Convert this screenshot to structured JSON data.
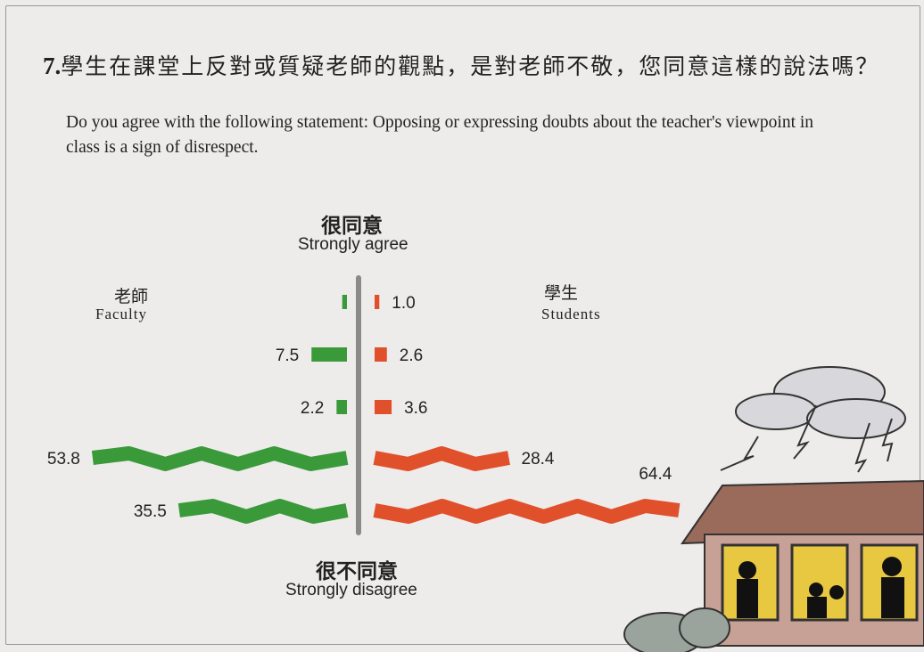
{
  "question": {
    "number": "7.",
    "zh": "學生在課堂上反對或質疑老師的觀點，是對老師不敬，您同意這樣的說法嗎？",
    "en": "Do you agree with the following statement: Opposing or expressing doubts about the teacher's viewpoint in class is a sign of disrespect."
  },
  "chart_data": {
    "type": "bar",
    "orientation": "horizontal diverging",
    "axis_top": {
      "zh": "很同意",
      "en": "Strongly agree"
    },
    "axis_bottom": {
      "zh": "很不同意",
      "en": "Strongly disagree"
    },
    "series": [
      {
        "name": "Faculty",
        "name_zh": "老師",
        "color": "#3a9a3a",
        "values": [
          1.0,
          7.5,
          2.2,
          53.8,
          35.5
        ],
        "labels": [
          "",
          "7.5",
          "2.2",
          "53.8",
          "35.5"
        ]
      },
      {
        "name": "Students",
        "name_zh": "學生",
        "color": "#e0502a",
        "values": [
          1.0,
          2.6,
          3.6,
          28.4,
          64.4
        ],
        "labels": [
          "1.0",
          "2.6",
          "3.6",
          "28.4",
          "64.4"
        ]
      }
    ],
    "unit": "%",
    "axis_color": "#8a8a8a"
  }
}
